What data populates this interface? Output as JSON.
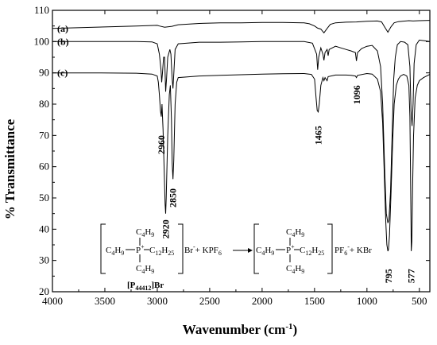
{
  "chart_data": {
    "type": "line",
    "xlabel": "Wavenumber (cm",
    "xlabel_sup": "-1",
    "xlabel_end": ")",
    "ylabel": "% Transmittance",
    "xlim": [
      4000,
      400
    ],
    "ylim": [
      20,
      110
    ],
    "x_ticks": [
      4000,
      3500,
      3000,
      2500,
      2000,
      1500,
      1000,
      500
    ],
    "y_ticks": [
      20,
      30,
      40,
      50,
      60,
      70,
      80,
      90,
      100,
      110
    ],
    "series": [
      {
        "name": "(a)",
        "points": [
          [
            4000,
            104.2
          ],
          [
            3800,
            104.4
          ],
          [
            3600,
            104.6
          ],
          [
            3400,
            104.8
          ],
          [
            3200,
            105.0
          ],
          [
            3000,
            105.2
          ],
          [
            2980,
            105.0
          ],
          [
            2930,
            104.6
          ],
          [
            2860,
            104.9
          ],
          [
            2800,
            105.4
          ],
          [
            2600,
            105.8
          ],
          [
            2400,
            106.0
          ],
          [
            2200,
            106.0
          ],
          [
            2000,
            106.1
          ],
          [
            1800,
            106.1
          ],
          [
            1600,
            106.0
          ],
          [
            1550,
            105.7
          ],
          [
            1500,
            105.0
          ],
          [
            1470,
            104.3
          ],
          [
            1440,
            104.0
          ],
          [
            1410,
            102.8
          ],
          [
            1380,
            104.2
          ],
          [
            1350,
            105.5
          ],
          [
            1300,
            106.0
          ],
          [
            1200,
            106.2
          ],
          [
            1100,
            106.3
          ],
          [
            1000,
            106.5
          ],
          [
            900,
            106.6
          ],
          [
            860,
            106.3
          ],
          [
            830,
            104.6
          ],
          [
            800,
            103.0
          ],
          [
            770,
            104.8
          ],
          [
            740,
            106.0
          ],
          [
            700,
            106.4
          ],
          [
            600,
            106.7
          ],
          [
            560,
            106.6
          ],
          [
            500,
            106.7
          ],
          [
            400,
            106.8
          ]
        ]
      },
      {
        "name": "(b)",
        "points": [
          [
            4000,
            100.0
          ],
          [
            3600,
            100.0
          ],
          [
            3200,
            100.0
          ],
          [
            3050,
            99.9
          ],
          [
            3000,
            99.3
          ],
          [
            2980,
            96.0
          ],
          [
            2965,
            91.0
          ],
          [
            2958,
            87.0
          ],
          [
            2950,
            90.0
          ],
          [
            2940,
            95.0
          ],
          [
            2930,
            95.0
          ],
          [
            2925,
            90.0
          ],
          [
            2920,
            84.0
          ],
          [
            2912,
            88.0
          ],
          [
            2900,
            95.0
          ],
          [
            2880,
            97.5
          ],
          [
            2870,
            96.0
          ],
          [
            2858,
            88.0
          ],
          [
            2850,
            85.0
          ],
          [
            2842,
            90.0
          ],
          [
            2830,
            97.5
          ],
          [
            2800,
            99.3
          ],
          [
            2600,
            99.8
          ],
          [
            2400,
            99.8
          ],
          [
            2200,
            99.9
          ],
          [
            2000,
            100.0
          ],
          [
            1800,
            100.0
          ],
          [
            1600,
            100.0
          ],
          [
            1520,
            99.5
          ],
          [
            1480,
            96.0
          ],
          [
            1470,
            91.0
          ],
          [
            1460,
            95.0
          ],
          [
            1440,
            98.0
          ],
          [
            1420,
            96.0
          ],
          [
            1410,
            94.0
          ],
          [
            1400,
            96.5
          ],
          [
            1380,
            97.5
          ],
          [
            1370,
            95.5
          ],
          [
            1360,
            97.5
          ],
          [
            1300,
            98.5
          ],
          [
            1250,
            98.0
          ],
          [
            1200,
            97.5
          ],
          [
            1150,
            97.0
          ],
          [
            1110,
            96.5
          ],
          [
            1100,
            93.8
          ],
          [
            1090,
            96.5
          ],
          [
            1050,
            97.8
          ],
          [
            1000,
            98.5
          ],
          [
            950,
            98.8
          ],
          [
            900,
            97.0
          ],
          [
            870,
            92.0
          ],
          [
            850,
            80.0
          ],
          [
            830,
            58.0
          ],
          [
            815,
            45.0
          ],
          [
            800,
            42.0
          ],
          [
            790,
            43.0
          ],
          [
            775,
            52.0
          ],
          [
            760,
            70.0
          ],
          [
            745,
            88.0
          ],
          [
            730,
            95.0
          ],
          [
            710,
            99.0
          ],
          [
            680,
            100.0
          ],
          [
            640,
            99.8
          ],
          [
            610,
            99.0
          ],
          [
            590,
            92.0
          ],
          [
            580,
            78.0
          ],
          [
            570,
            73.0
          ],
          [
            560,
            80.0
          ],
          [
            550,
            93.0
          ],
          [
            530,
            99.0
          ],
          [
            500,
            100.5
          ],
          [
            450,
            100.3
          ],
          [
            400,
            100.0
          ]
        ]
      },
      {
        "name": "(c)",
        "points": [
          [
            4000,
            90.0
          ],
          [
            3600,
            90.0
          ],
          [
            3200,
            89.9
          ],
          [
            3050,
            89.6
          ],
          [
            3000,
            89.0
          ],
          [
            2990,
            87.0
          ],
          [
            2980,
            83.0
          ],
          [
            2970,
            78.0
          ],
          [
            2962,
            76.0
          ],
          [
            2955,
            80.0
          ],
          [
            2945,
            72.0
          ],
          [
            2935,
            60.0
          ],
          [
            2925,
            48.0
          ],
          [
            2920,
            45.0
          ],
          [
            2915,
            50.0
          ],
          [
            2900,
            70.0
          ],
          [
            2885,
            83.0
          ],
          [
            2875,
            86.0
          ],
          [
            2865,
            75.0
          ],
          [
            2858,
            61.0
          ],
          [
            2850,
            56.0
          ],
          [
            2843,
            62.0
          ],
          [
            2830,
            80.0
          ],
          [
            2815,
            87.0
          ],
          [
            2800,
            88.5
          ],
          [
            2600,
            89.0
          ],
          [
            2400,
            89.2
          ],
          [
            2200,
            89.4
          ],
          [
            2000,
            89.6
          ],
          [
            1800,
            89.7
          ],
          [
            1600,
            89.8
          ],
          [
            1530,
            89.5
          ],
          [
            1500,
            88.0
          ],
          [
            1485,
            82.0
          ],
          [
            1475,
            78.0
          ],
          [
            1465,
            77.5
          ],
          [
            1455,
            80.0
          ],
          [
            1440,
            86.0
          ],
          [
            1420,
            88.5
          ],
          [
            1410,
            87.5
          ],
          [
            1400,
            88.5
          ],
          [
            1380,
            87.5
          ],
          [
            1370,
            88.8
          ],
          [
            1300,
            89.3
          ],
          [
            1200,
            89.3
          ],
          [
            1150,
            89.2
          ],
          [
            1110,
            89.0
          ],
          [
            1100,
            88.5
          ],
          [
            1090,
            89.2
          ],
          [
            1000,
            89.8
          ],
          [
            950,
            89.6
          ],
          [
            900,
            88.0
          ],
          [
            870,
            84.0
          ],
          [
            850,
            74.0
          ],
          [
            835,
            58.0
          ],
          [
            820,
            42.0
          ],
          [
            810,
            35.0
          ],
          [
            800,
            33.0
          ],
          [
            795,
            33.5
          ],
          [
            785,
            38.0
          ],
          [
            770,
            52.0
          ],
          [
            755,
            68.0
          ],
          [
            740,
            80.0
          ],
          [
            720,
            86.0
          ],
          [
            700,
            88.0
          ],
          [
            680,
            89.0
          ],
          [
            650,
            89.5
          ],
          [
            620,
            89.0
          ],
          [
            600,
            86.0
          ],
          [
            590,
            76.0
          ],
          [
            585,
            60.0
          ],
          [
            580,
            42.0
          ],
          [
            577,
            33.0
          ],
          [
            572,
            36.0
          ],
          [
            565,
            52.0
          ],
          [
            555,
            70.0
          ],
          [
            540,
            82.0
          ],
          [
            520,
            86.0
          ],
          [
            500,
            87.5
          ],
          [
            460,
            88.5
          ],
          [
            400,
            89.5
          ]
        ]
      }
    ],
    "peak_labels": [
      {
        "text": "2960",
        "x": 2960,
        "y": 67
      },
      {
        "text": "2920",
        "x": 2920,
        "y": 40
      },
      {
        "text": "2850",
        "x": 2850,
        "y": 50
      },
      {
        "text": "1465",
        "x": 1465,
        "y": 70
      },
      {
        "text": "1096",
        "x": 1096,
        "y": 83
      },
      {
        "text": "795",
        "x": 795,
        "y": 25
      },
      {
        "text": "577",
        "x": 577,
        "y": 25
      }
    ],
    "scheme": {
      "chain_left": "C",
      "chain_left_sub": "4",
      "chain_left_h": "H",
      "chain_left_h_sub": "9",
      "top_group": "C",
      "top_group_sub": "4",
      "top_group_h": "H",
      "top_group_h_sub": "9",
      "bottom_group": "C",
      "bottom_group_sub": "4",
      "bottom_group_h": "H",
      "bottom_group_h_sub": "9",
      "phosphorus": "P",
      "phosphorus_charge": "+",
      "right_group": "C",
      "right_group_sub": "12",
      "right_group_h": "H",
      "right_group_h_sub": "25",
      "reactant_counterion": "Br",
      "reactant_charge": "-",
      "plus_reagent": "+ KPF",
      "plus_reagent_sub": "6",
      "product_counterion": "PF",
      "product_counterion_sub": "6",
      "product_charge": "-",
      "byproduct": "+ KBr",
      "name_label": "[P",
      "name_label_sub": "44412",
      "name_label_end": "]Br"
    }
  }
}
